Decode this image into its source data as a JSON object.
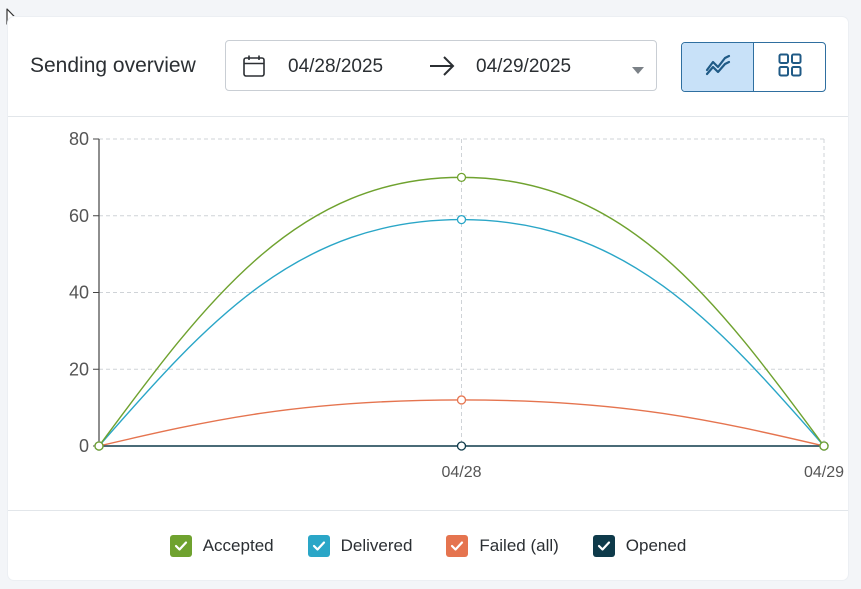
{
  "header": {
    "title": "Sending overview",
    "date_from": "04/28/2025",
    "date_to": "04/29/2025",
    "view_modes": [
      {
        "name": "line-chart-view",
        "active": true
      },
      {
        "name": "grid-view",
        "active": false
      }
    ]
  },
  "chart_data": {
    "type": "line",
    "x": [
      "",
      "04/28",
      "04/29"
    ],
    "xlabel": "",
    "ylabel": "",
    "ylim": [
      0,
      80
    ],
    "yticks": [
      0,
      20,
      40,
      60,
      80
    ],
    "grid": true,
    "legend_placement": "bottom",
    "series": [
      {
        "name": "Accepted",
        "values": [
          0,
          70,
          0
        ],
        "color": "#6fa22f"
      },
      {
        "name": "Delivered",
        "values": [
          0,
          59,
          0
        ],
        "color": "#2aa6c7"
      },
      {
        "name": "Failed (all)",
        "values": [
          0,
          12,
          0
        ],
        "color": "#e5744f"
      },
      {
        "name": "Opened",
        "values": [
          0,
          0,
          0
        ],
        "color": "#0e3a4a"
      }
    ]
  },
  "legend": {
    "items": [
      {
        "label": "Accepted",
        "color": "#6fa22f",
        "checked": true
      },
      {
        "label": "Delivered",
        "color": "#2aa6c7",
        "checked": true
      },
      {
        "label": "Failed (all)",
        "color": "#e5744f",
        "checked": true
      },
      {
        "label": "Opened",
        "color": "#0e3a4a",
        "checked": true
      }
    ]
  },
  "icons": {
    "calendar": "calendar-icon",
    "arrow": "arrow-right-icon",
    "caret": "caret-down-icon",
    "line_view": "line-chart-icon",
    "grid_view": "grid-icon",
    "cursor": "mouse-cursor-icon"
  }
}
